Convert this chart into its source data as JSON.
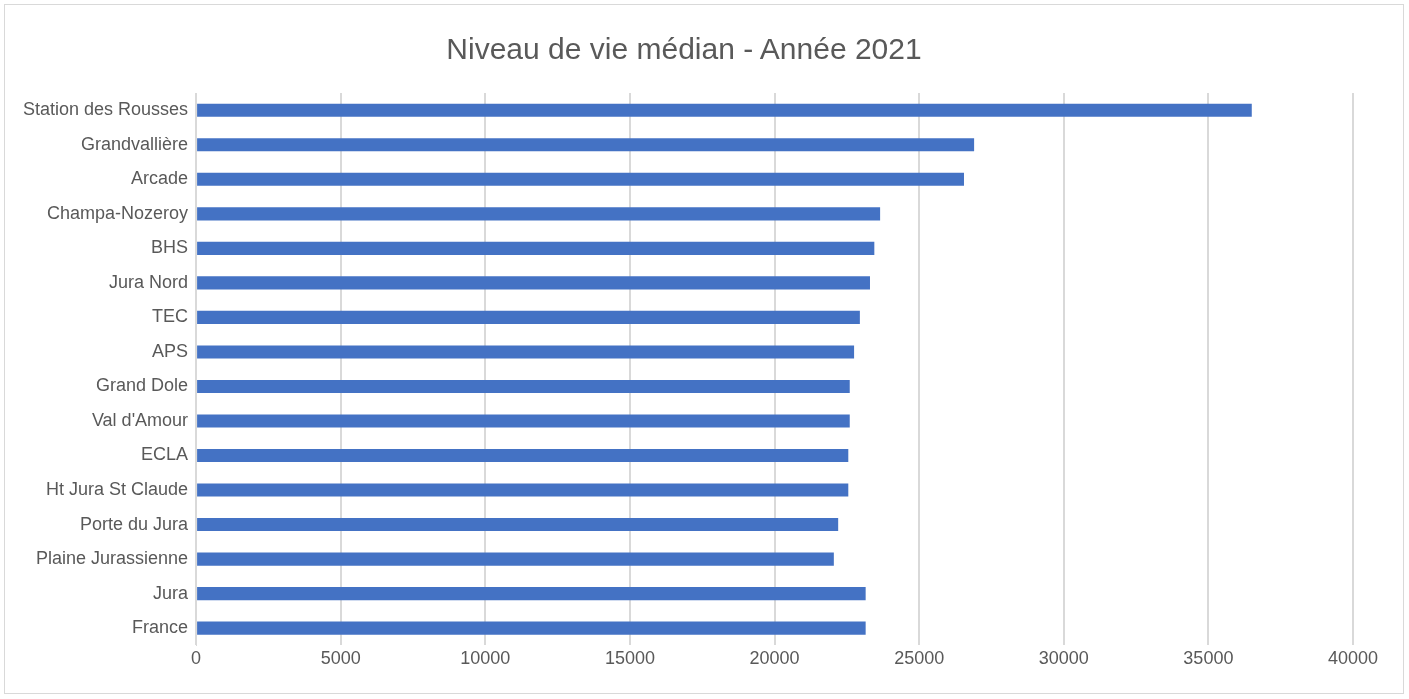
{
  "chart_data": {
    "type": "bar",
    "orientation": "horizontal",
    "title": "Niveau de vie médian - Année 2021",
    "categories": [
      "Station des Rousses",
      "Grandvallière",
      "Arcade",
      "Champa-Nozeroy",
      "BHS",
      "Jura Nord",
      "TEC",
      "APS",
      "Grand Dole",
      "Val d'Amour",
      "ECLA",
      "Ht Jura St Claude",
      "Porte du Jura",
      "Plaine Jurassienne",
      "Jura",
      "France"
    ],
    "values": [
      36500,
      26900,
      26550,
      23650,
      23450,
      23300,
      22950,
      22750,
      22600,
      22600,
      22550,
      22550,
      22200,
      22050,
      23150,
      23150
    ],
    "color": "#4472c4",
    "xlim": [
      0,
      40000
    ],
    "xticks": [
      0,
      5000,
      10000,
      15000,
      20000,
      25000,
      30000,
      35000,
      40000
    ],
    "grid": "x",
    "legend": false
  }
}
